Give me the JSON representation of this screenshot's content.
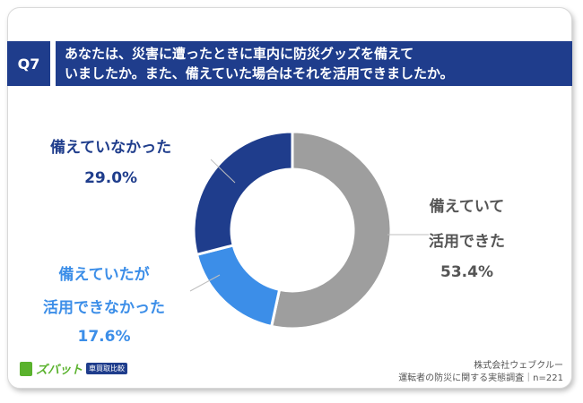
{
  "question": {
    "number": "Q7",
    "text_line1": "あなたは、災害に遭ったときに車内に防災グッズを備えて",
    "text_line2": "いましたか。また、備えていた場合はそれを活用できましたか。"
  },
  "chart_data": {
    "type": "pie",
    "variant": "donut",
    "categories": [
      "備えていて活用できた",
      "備えていたが活用できなかった",
      "備えていなかった"
    ],
    "values": [
      53.4,
      17.6,
      29.0
    ],
    "value_labels": [
      "53.4%",
      "17.6%",
      "29.0%"
    ],
    "colors": [
      "#9e9e9e",
      "#3c8ee8",
      "#1f3d8c"
    ],
    "start": "top",
    "direction": "clockwise"
  },
  "labels": {
    "used": {
      "line1": "備えていて",
      "line2": "活用できた",
      "value": "53.4%"
    },
    "not_used": {
      "line1": "備えていたが",
      "line2": "活用できなかった",
      "value": "17.6%"
    },
    "none": {
      "line1": "備えていなかった",
      "value": "29.0%"
    }
  },
  "footer": {
    "company": "株式会社ウェブクルー",
    "survey": "運転者の防災に関する実態調査｜n=221",
    "logo_text": "ズバット",
    "logo_tag": "車買取比較"
  }
}
